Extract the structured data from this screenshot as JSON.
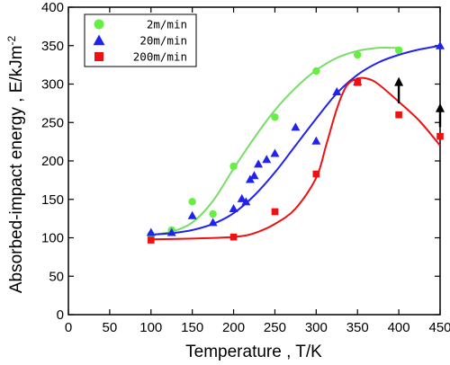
{
  "chart_data": {
    "type": "scatter",
    "xlabel": "Temperature , T/K",
    "ylabel": "Absorbed-impact energy , E/kJm",
    "ylabel_superscript": "-2",
    "xlim": [
      0,
      450
    ],
    "ylim": [
      0,
      400
    ],
    "xticks": [
      0,
      50,
      100,
      150,
      200,
      250,
      300,
      350,
      400,
      450
    ],
    "yticks": [
      0,
      50,
      100,
      150,
      200,
      250,
      300,
      350,
      400
    ],
    "grid": false,
    "legend_position": "top-left",
    "series": [
      {
        "name": "2m/min",
        "marker": "circle",
        "color": "#66ee44",
        "points": [
          [
            100,
            104
          ],
          [
            125,
            110
          ],
          [
            150,
            147
          ],
          [
            175,
            131
          ],
          [
            200,
            193
          ],
          [
            250,
            257
          ],
          [
            300,
            317
          ],
          [
            350,
            338
          ],
          [
            400,
            344
          ]
        ],
        "fit_curve": [
          [
            100,
            104
          ],
          [
            125,
            108
          ],
          [
            150,
            120
          ],
          [
            175,
            148
          ],
          [
            200,
            190
          ],
          [
            225,
            230
          ],
          [
            250,
            266
          ],
          [
            275,
            295
          ],
          [
            300,
            318
          ],
          [
            325,
            334
          ],
          [
            350,
            343
          ],
          [
            375,
            347
          ],
          [
            400,
            347
          ]
        ]
      },
      {
        "name": "20m/min",
        "marker": "triangle",
        "color": "#2222ee",
        "points": [
          [
            100,
            107
          ],
          [
            125,
            107
          ],
          [
            150,
            129
          ],
          [
            175,
            120
          ],
          [
            200,
            138
          ],
          [
            210,
            151
          ],
          [
            215,
            147
          ],
          [
            220,
            176
          ],
          [
            225,
            181
          ],
          [
            230,
            196
          ],
          [
            240,
            202
          ],
          [
            250,
            210
          ],
          [
            275,
            244
          ],
          [
            300,
            226
          ],
          [
            325,
            290
          ],
          [
            350,
            303
          ],
          [
            450,
            350
          ]
        ],
        "fit_curve": [
          [
            100,
            104
          ],
          [
            125,
            106
          ],
          [
            150,
            110
          ],
          [
            175,
            118
          ],
          [
            200,
            132
          ],
          [
            225,
            155
          ],
          [
            250,
            185
          ],
          [
            275,
            220
          ],
          [
            300,
            255
          ],
          [
            325,
            288
          ],
          [
            350,
            312
          ],
          [
            375,
            328
          ],
          [
            400,
            338
          ],
          [
            425,
            345
          ],
          [
            450,
            350
          ]
        ]
      },
      {
        "name": "200m/min",
        "marker": "square",
        "color": "#ee1111",
        "points": [
          [
            100,
            97
          ],
          [
            200,
            101
          ],
          [
            250,
            134
          ],
          [
            300,
            183
          ],
          [
            350,
            302
          ],
          [
            400,
            260
          ],
          [
            450,
            232
          ]
        ],
        "fit_curve": [
          [
            100,
            98
          ],
          [
            150,
            99
          ],
          [
            200,
            101
          ],
          [
            225,
            106
          ],
          [
            250,
            118
          ],
          [
            275,
            138
          ],
          [
            300,
            178
          ],
          [
            312,
            220
          ],
          [
            325,
            268
          ],
          [
            337,
            298
          ],
          [
            350,
            307
          ],
          [
            362,
            307
          ],
          [
            375,
            300
          ],
          [
            400,
            277
          ],
          [
            425,
            252
          ],
          [
            450,
            220
          ]
        ]
      }
    ],
    "arrows": [
      {
        "x": 400,
        "y_start": 275,
        "y_end": 308
      },
      {
        "x": 450,
        "y_start": 244,
        "y_end": 274
      }
    ]
  }
}
